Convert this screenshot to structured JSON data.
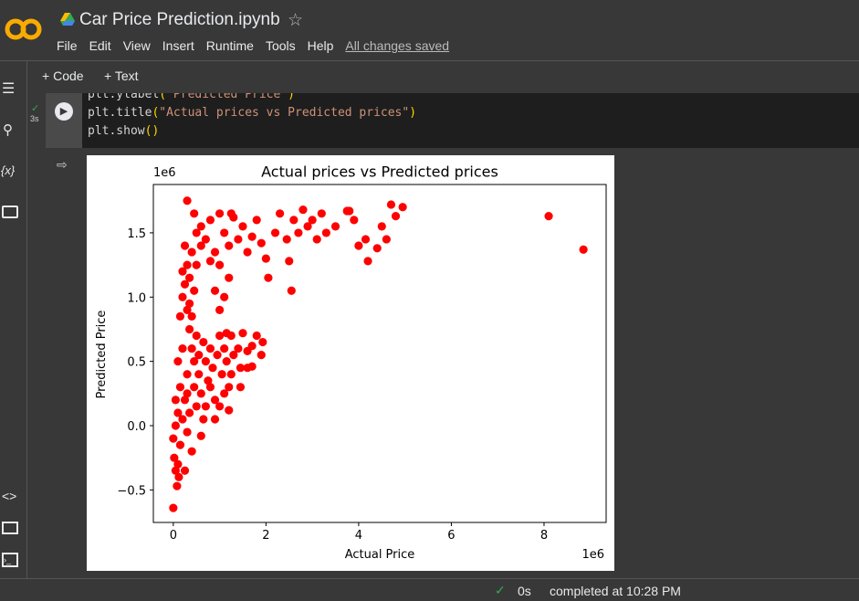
{
  "header": {
    "title": "Car Price Prediction.ipynb",
    "menu": [
      "File",
      "Edit",
      "View",
      "Insert",
      "Runtime",
      "Tools",
      "Help"
    ],
    "save_status": "All changes saved"
  },
  "toolbar": [
    "Code",
    "Text"
  ],
  "cell": {
    "run_time": "3s",
    "code": [
      [
        "plt.ylabel",
        "(",
        "\"Predicted Price\"",
        ")"
      ],
      [
        "plt.title",
        "(",
        "\"Actual prices vs Predicted prices\"",
        ")"
      ],
      [
        "plt.show",
        "()"
      ]
    ]
  },
  "chart_data": {
    "type": "scatter",
    "title": "Actual prices vs Predicted prices",
    "x_label": "Actual Price",
    "y_label": "Predicted Price",
    "x_offset": "1e6",
    "y_offset": "1e6",
    "color": "#ff0000",
    "xlim": [
      -0.43,
      9.34
    ],
    "ylim": [
      -0.753,
      1.876
    ],
    "xticks": [
      0,
      2,
      4,
      6,
      8
    ],
    "yticks": [
      {
        "value": -0.5,
        "label": "−0.5"
      },
      {
        "value": 0,
        "label": "0.0"
      },
      0.5,
      {
        "value": 1,
        "label": "1.0"
      },
      1.5
    ],
    "x": [
      0,
      0.08,
      0.05,
      0.02,
      0.1,
      0,
      0.05,
      0.1,
      0.15,
      0.2,
      0.25,
      0.3,
      0.35,
      0.4,
      0.45,
      0.5,
      0.55,
      0.6,
      0.65,
      0.7,
      0.75,
      0.8,
      0.85,
      0.9,
      0.95,
      1.0,
      1.05,
      1.1,
      1.15,
      1.2,
      1.25,
      1.3,
      1.4,
      1.5,
      1.6,
      1.7,
      1.8,
      1.9,
      1.93,
      1.6,
      1.25,
      1.45,
      1.2,
      0.9,
      0.6,
      0.3,
      0.2,
      0.15,
      0.1,
      0.05,
      0.25,
      0.12,
      0.4,
      0.5,
      0.35,
      0.8,
      0.7,
      1.0,
      0.45,
      0.65,
      1.1,
      1.45,
      1.7,
      1.15,
      0.55,
      0.3,
      0.15,
      0.2,
      0.25,
      0.3,
      0.35,
      0.4,
      0.2,
      0.3,
      0.45,
      0.25,
      0.5,
      0.35,
      0.4,
      0.6,
      0.9,
      1.0,
      1.1,
      0.8,
      0.3,
      0.45,
      0.5,
      0.6,
      0.7,
      0.8,
      0.9,
      1.0,
      1.1,
      1.2,
      1.3,
      1.4,
      1.5,
      1.6,
      1.7,
      1.8,
      1.9,
      2.0,
      2.05,
      2.2,
      2.3,
      2.45,
      2.5,
      2.6,
      2.7,
      2.8,
      2.9,
      3.0,
      3.1,
      3.2,
      3.3,
      3.5,
      3.75,
      3.9,
      4.0,
      4.15,
      4.2,
      4.4,
      4.5,
      4.6,
      4.7,
      4.8,
      4.95,
      2.55,
      3.8,
      1.2,
      1.0,
      8.1,
      8.85,
      1.25
    ],
    "values": [
      -0.64,
      -0.47,
      -0.35,
      -0.25,
      -0.3,
      -0.1,
      0,
      0.1,
      -0.15,
      0.05,
      0.2,
      -0.05,
      0.1,
      -0.2,
      0.3,
      0.15,
      0.4,
      0.25,
      0.05,
      0.5,
      0.35,
      0.6,
      0.45,
      0.2,
      0.55,
      0.7,
      0.4,
      0.6,
      0.5,
      0.3,
      0.7,
      0.55,
      0.6,
      0.72,
      0.58,
      0.62,
      0.7,
      0.55,
      0.65,
      0.45,
      0.4,
      0.45,
      0.12,
      0.05,
      -0.08,
      0.4,
      0.6,
      0.3,
      0.5,
      0.2,
      -0.35,
      -0.4,
      0.6,
      0.7,
      0.75,
      0.3,
      0.15,
      0.15,
      0.5,
      0.65,
      0.25,
      0.3,
      0.46,
      0.72,
      0.55,
      0.25,
      0.85,
      1.0,
      1.1,
      1.25,
      0.95,
      1.35,
      1.2,
      0.9,
      1.05,
      1.4,
      1.25,
      1.15,
      0.85,
      1.4,
      1.05,
      0.9,
      1.0,
      1.28,
      1.75,
      1.65,
      1.5,
      1.55,
      1.45,
      1.6,
      1.35,
      1.65,
      1.5,
      1.4,
      1.62,
      1.45,
      1.55,
      1.35,
      1.47,
      1.6,
      1.42,
      1.3,
      1.15,
      1.5,
      1.65,
      1.45,
      1.28,
      1.6,
      1.5,
      1.68,
      1.55,
      1.6,
      1.45,
      1.65,
      1.5,
      1.55,
      1.67,
      1.6,
      1.4,
      1.45,
      1.28,
      1.38,
      1.55,
      1.45,
      1.72,
      1.63,
      1.7,
      1.05,
      1.67,
      1.15,
      1.25,
      1.63,
      1.37,
      1.65
    ]
  },
  "status": {
    "time": "0s",
    "message": "completed at 10:28 PM"
  }
}
